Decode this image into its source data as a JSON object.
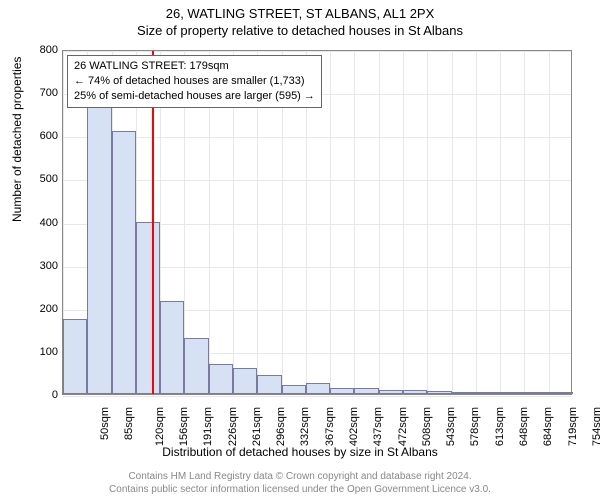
{
  "title_line1": "26, WATLING STREET, ST ALBANS, AL1 2PX",
  "title_line2": "Size of property relative to detached houses in St Albans",
  "ylabel": "Number of detached properties",
  "xlabel": "Distribution of detached houses by size in St Albans",
  "footer_line1": "Contains HM Land Registry data © Crown copyright and database right 2024.",
  "footer_line2": "Contains public sector information licensed under the Open Government Licence v3.0.",
  "info_box": {
    "line1": "26 WATLING STREET: 179sqm",
    "line2": "← 74% of detached houses are smaller (1,733)",
    "line3": "25% of semi-detached houses are larger (595) →"
  },
  "chart": {
    "type": "histogram",
    "ylim": [
      0,
      800
    ],
    "yticks": [
      0,
      100,
      200,
      300,
      400,
      500,
      600,
      700,
      800
    ],
    "xticks": [
      "50sqm",
      "85sqm",
      "120sqm",
      "156sqm",
      "191sqm",
      "226sqm",
      "261sqm",
      "296sqm",
      "332sqm",
      "367sqm",
      "402sqm",
      "437sqm",
      "472sqm",
      "508sqm",
      "543sqm",
      "578sqm",
      "613sqm",
      "648sqm",
      "684sqm",
      "719sqm",
      "754sqm"
    ],
    "bar_fill": "#d6e2f3",
    "bar_stroke": "#7a7aa0",
    "marker_color": "#ff0000",
    "marker_value_sqm": 179,
    "x_min_sqm": 50,
    "x_bin_sqm": 35.2,
    "values": [
      175,
      665,
      610,
      400,
      215,
      130,
      70,
      60,
      45,
      20,
      25,
      15,
      15,
      10,
      10,
      8,
      5,
      3,
      3,
      2,
      2
    ],
    "background": "#ffffff",
    "grid_color": "#e8e8e8",
    "axis_fontsize": 11,
    "label_fontsize": 12,
    "title_fontsize": 13
  }
}
